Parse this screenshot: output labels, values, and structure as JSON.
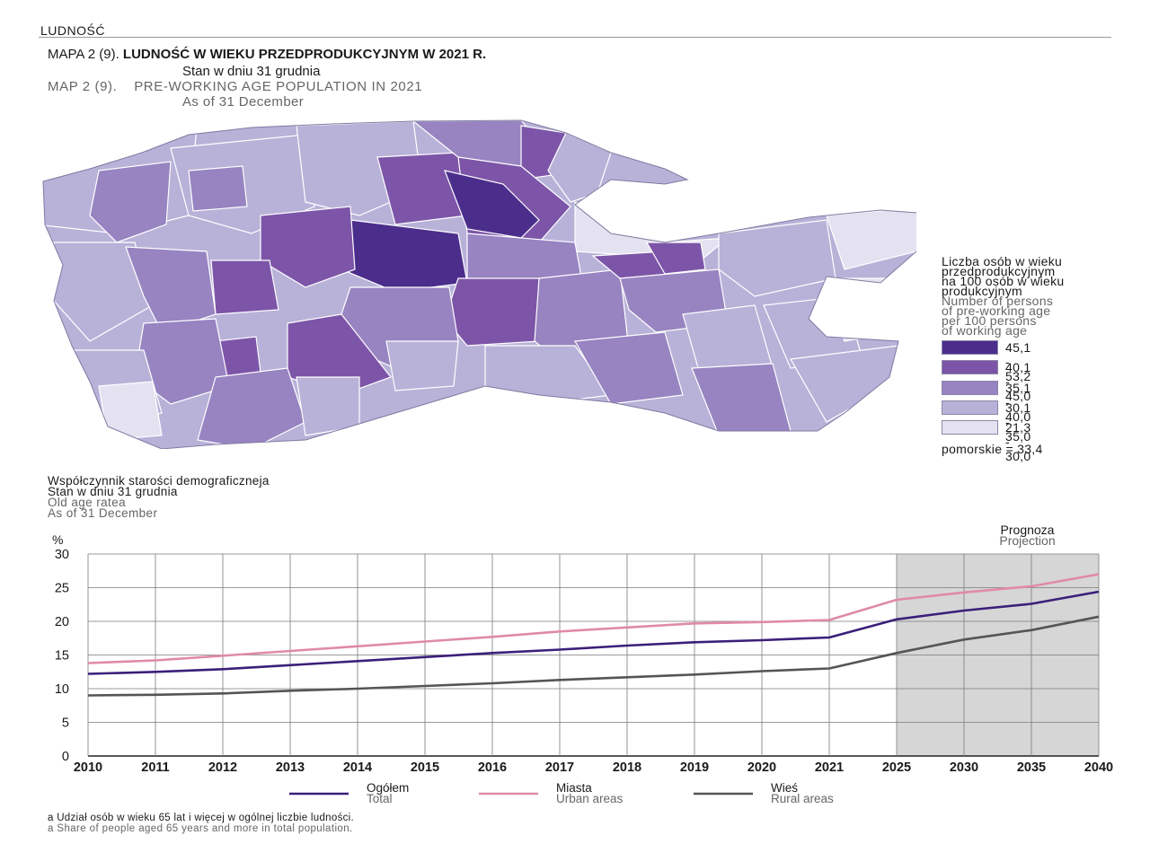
{
  "header": {
    "section": "LUDNOŚĆ"
  },
  "map": {
    "title_pl_prefix": "MAPA 2 (9).",
    "title_pl_main": "LUDNOŚĆ W WIEKU PRZEDPRODUKCYJNYM W 2021 R.",
    "subtitle_pl": "Stan w dniu 31 grudnia",
    "title_en_prefix": "MAP 2 (9).",
    "title_en_main": "PRE-WORKING AGE POPULATION IN 2021",
    "subtitle_en": "As of 31 December",
    "legend": {
      "title_pl": [
        "Liczba osób w wieku",
        "przedprodukcyjnym",
        "na 100 osób w wieku",
        "produkcyjnym"
      ],
      "title_en": [
        "Number of persons",
        "of pre-working age",
        "per 100 persons",
        "of working age"
      ],
      "classes": [
        {
          "label": "45,1 - 53,2",
          "color": "#4b2e8c"
        },
        {
          "label": "40,1 - 45,0",
          "color": "#7d55a8"
        },
        {
          "label": "35,1 - 40,0",
          "color": "#9784c1"
        },
        {
          "label": "30,1 - 35,0",
          "color": "#b8b2d9"
        },
        {
          "label": "21,3 - 30,0",
          "color": "#e4e2f1"
        }
      ],
      "note": "pomorskie = 33,4"
    }
  },
  "chart": {
    "title_pl": "Współczynnik starości demograficzneja",
    "subtitle_pl": "Stan w dniu 31 grudnia",
    "title_en": "Old age ratea",
    "subtitle_en": "As of 31 December",
    "y_unit": "%",
    "projection_label_pl": "Prognoza",
    "projection_label_en": "Projection"
  },
  "chart_data": {
    "type": "line",
    "x": [
      "2010",
      "2011",
      "2012",
      "2013",
      "2014",
      "2015",
      "2016",
      "2017",
      "2018",
      "2019",
      "2020",
      "2021",
      "2025",
      "2030",
      "2035",
      "2040"
    ],
    "ylim": [
      0,
      30
    ],
    "yticks": [
      0,
      5,
      10,
      15,
      20,
      25,
      30
    ],
    "grid": true,
    "projection_range": [
      "2025",
      "2040"
    ],
    "series": [
      {
        "name_pl": "Ogółem",
        "name_en": "Total",
        "color": "#3b1f7a",
        "values": [
          12.2,
          12.5,
          12.9,
          13.5,
          14.1,
          14.7,
          15.3,
          15.8,
          16.4,
          16.9,
          17.2,
          17.6,
          20.3,
          21.6,
          22.6,
          24.4
        ]
      },
      {
        "name_pl": "Miasta",
        "name_en": "Urban areas",
        "color": "#e08aa8",
        "values": [
          13.8,
          14.2,
          14.9,
          15.6,
          16.3,
          17.0,
          17.7,
          18.5,
          19.1,
          19.7,
          19.9,
          20.2,
          23.2,
          24.3,
          25.2,
          27.0
        ]
      },
      {
        "name_pl": "Wieś",
        "name_en": "Rural areas",
        "color": "#555555",
        "values": [
          9.0,
          9.1,
          9.3,
          9.7,
          10.0,
          10.4,
          10.8,
          11.3,
          11.7,
          12.1,
          12.6,
          13.0,
          15.3,
          17.3,
          18.7,
          20.7
        ]
      }
    ]
  },
  "footnote": {
    "pl": "a Udział osób w wieku 65 lat i więcej w ogólnej liczbie ludności.",
    "en": "a Share of people aged 65 years and more in total population."
  }
}
